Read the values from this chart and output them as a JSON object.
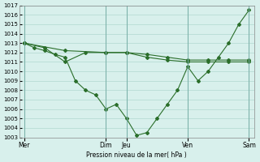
{
  "title": "",
  "xlabel": "Pression niveau de la mer( hPa )",
  "ylabel": "",
  "background_color": "#d8f0ec",
  "grid_color": "#b0d8d0",
  "line_color": "#2a6e2a",
  "ylim": [
    1003,
    1017
  ],
  "yticks": [
    1003,
    1004,
    1005,
    1006,
    1007,
    1008,
    1009,
    1010,
    1011,
    1012,
    1013,
    1014,
    1015,
    1016,
    1017
  ],
  "day_labels": [
    "Mer",
    "Dim",
    "Jeu",
    "Ven",
    "Sam"
  ],
  "day_positions": [
    0,
    8,
    10,
    16,
    22
  ],
  "lines": [
    {
      "x": [
        0,
        1,
        2,
        3,
        4,
        5,
        6,
        7,
        8,
        9,
        10,
        11,
        12,
        13,
        14,
        15,
        16,
        17,
        18,
        19,
        20,
        21,
        22
      ],
      "y": [
        1013,
        1012.5,
        1012.2,
        1011.8,
        1011.5,
        1009,
        1008,
        1007.5,
        1006,
        1006.5,
        1005,
        1003.2,
        1003.5,
        1005,
        1006.5,
        1008,
        1010.5,
        1009,
        1010,
        1011.5,
        1013,
        1015,
        1016.5
      ]
    },
    {
      "x": [
        0,
        2,
        4,
        6,
        8,
        10,
        12,
        14,
        16,
        18,
        20,
        22
      ],
      "y": [
        1013,
        1012.5,
        1011,
        1012,
        1012,
        1012,
        1011.5,
        1011.2,
        1011,
        1011,
        1011,
        1011
      ]
    },
    {
      "x": [
        0,
        4,
        8,
        10,
        12,
        14,
        16,
        18,
        20,
        22
      ],
      "y": [
        1013,
        1012.2,
        1012,
        1012,
        1011.8,
        1011.5,
        1011.2,
        1011.2,
        1011.2,
        1011.2
      ]
    }
  ]
}
